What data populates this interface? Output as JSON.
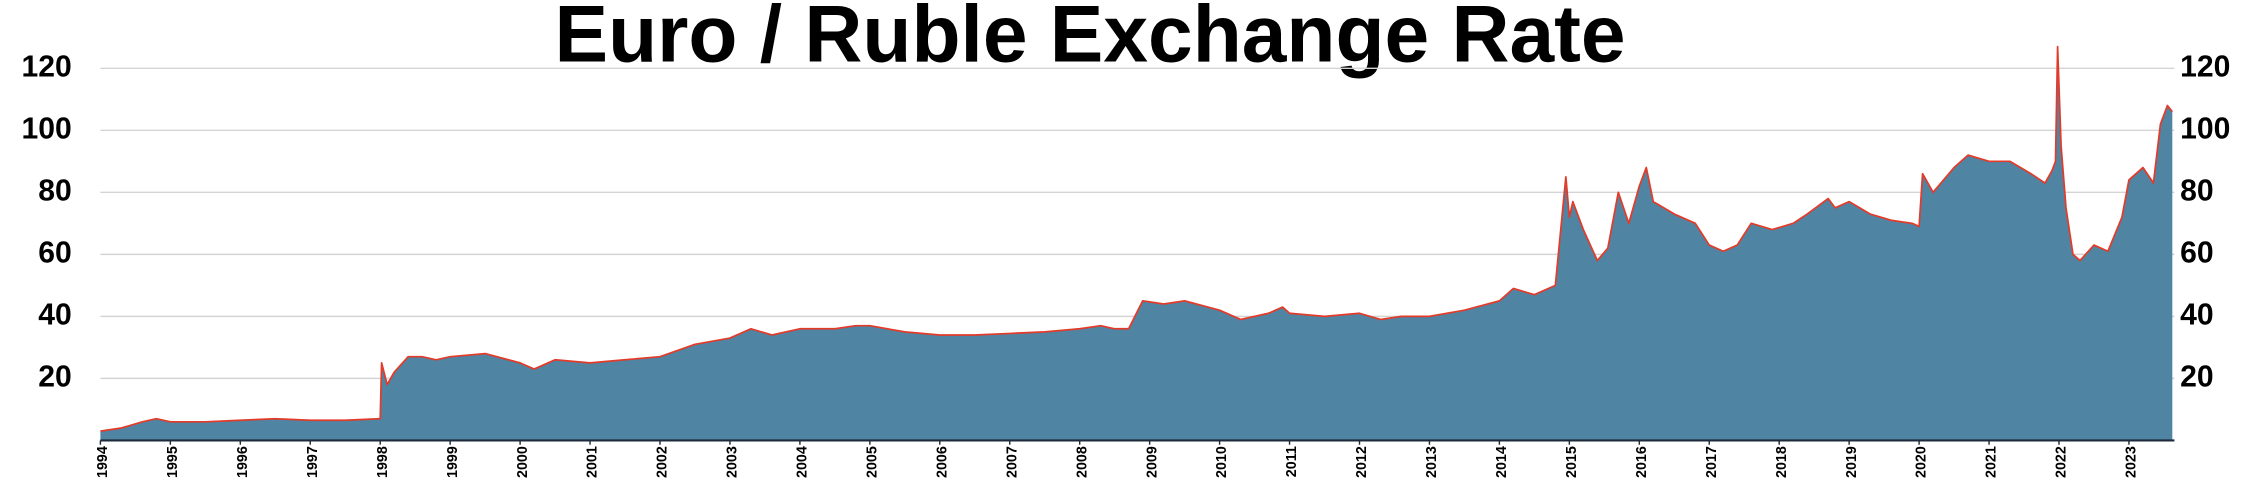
{
  "chart_data": {
    "type": "area",
    "title": "Euro / Ruble Exchange Rate",
    "color": "#4f84a3",
    "line_color": "#e33b2a",
    "grid": true,
    "x": [
      1994.0,
      1994.3,
      1994.6,
      1994.8,
      1995.0,
      1995.5,
      1996.0,
      1996.5,
      1997.0,
      1997.5,
      1997.98,
      1998.0,
      1998.02,
      1998.1,
      1998.2,
      1998.4,
      1998.6,
      1998.8,
      1999.0,
      1999.5,
      2000.0,
      2000.2,
      2000.5,
      2001.0,
      2001.5,
      2002.0,
      2002.5,
      2003.0,
      2003.3,
      2003.6,
      2004.0,
      2004.5,
      2004.8,
      2005.0,
      2005.5,
      2006.0,
      2006.5,
      2007.0,
      2007.5,
      2008.0,
      2008.3,
      2008.5,
      2008.7,
      2008.9,
      2009.2,
      2009.5,
      2010.0,
      2010.3,
      2010.7,
      2010.9,
      2011.0,
      2011.5,
      2012.0,
      2012.3,
      2012.6,
      2013.0,
      2013.5,
      2014.0,
      2014.2,
      2014.5,
      2014.8,
      2014.95,
      2015.0,
      2015.05,
      2015.2,
      2015.4,
      2015.55,
      2015.7,
      2015.85,
      2016.0,
      2016.1,
      2016.2,
      2016.5,
      2016.8,
      2017.0,
      2017.2,
      2017.4,
      2017.6,
      2017.9,
      2018.2,
      2018.4,
      2018.7,
      2018.8,
      2019.0,
      2019.3,
      2019.6,
      2019.9,
      2020.0,
      2020.05,
      2020.2,
      2020.5,
      2020.7,
      2021.0,
      2021.3,
      2021.6,
      2021.8,
      2021.9,
      2021.95,
      2021.98,
      2022.03,
      2022.1,
      2022.2,
      2022.3,
      2022.5,
      2022.7,
      2022.9,
      2023.0,
      2023.2,
      2023.35,
      2023.45,
      2023.55,
      2023.62
    ],
    "values": [
      3,
      4,
      6,
      7,
      6,
      6,
      6.5,
      7,
      6.5,
      6.5,
      7,
      7,
      25,
      18,
      22,
      27,
      27,
      26,
      27,
      28,
      25,
      23,
      26,
      25,
      26,
      27,
      31,
      33,
      36,
      34,
      36,
      36,
      37,
      37,
      35,
      34,
      34,
      34.5,
      35,
      36,
      37,
      36,
      36,
      45,
      44,
      45,
      42,
      39,
      41,
      43,
      41,
      40,
      41,
      39,
      40,
      40,
      42,
      45,
      49,
      47,
      50,
      85,
      72,
      77,
      68,
      58,
      62,
      80,
      70,
      82,
      88,
      77,
      73,
      70,
      63,
      61,
      63,
      70,
      68,
      70,
      73,
      78,
      75,
      77,
      73,
      71,
      70,
      69,
      86,
      80,
      88,
      92,
      90,
      90,
      86,
      83,
      87,
      90,
      127,
      95,
      75,
      60,
      58,
      63,
      61,
      72,
      84,
      88,
      83,
      102,
      108,
      106
    ],
    "xlim": [
      1994,
      2023.65
    ],
    "xticks": [
      1994,
      1995,
      1996,
      1997,
      1998,
      1999,
      2000,
      2001,
      2002,
      2003,
      2004,
      2005,
      2006,
      2007,
      2008,
      2009,
      2010,
      2011,
      2012,
      2013,
      2014,
      2015,
      2016,
      2017,
      2018,
      2019,
      2020,
      2021,
      2022,
      2023
    ],
    "ylim": [
      0,
      142
    ],
    "yticks": [
      20,
      40,
      60,
      80,
      100,
      120
    ],
    "y2lim": [
      0,
      142
    ],
    "y2ticks": [
      20,
      40,
      60,
      80,
      100,
      120
    ]
  }
}
